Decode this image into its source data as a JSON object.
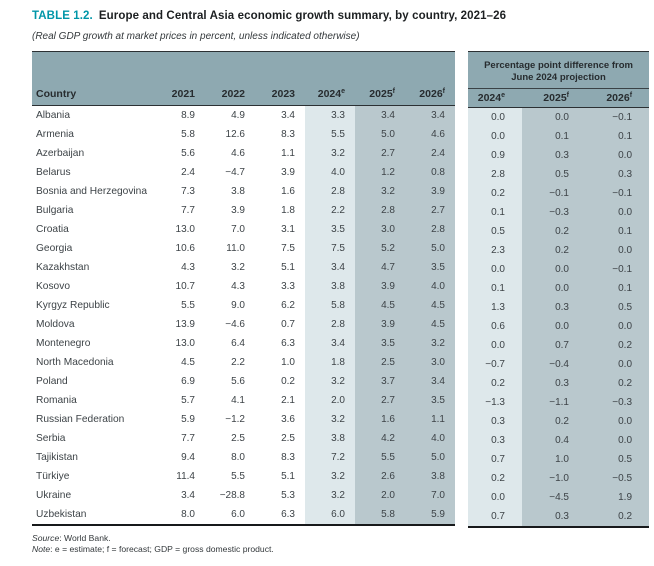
{
  "page": {
    "title_label": "TABLE 1.2.",
    "title_text": "Europe and Central Asia economic growth summary, by country, 2021–26",
    "subtitle": "(Real GDP growth at market prices in percent, unless indicated otherwise)",
    "source_label": "Source",
    "source_rest": ": World Bank.",
    "note_label": "Note",
    "note_rest": ": e = estimate; f = forecast; GDP = gross domestic product."
  },
  "colors": {
    "accent": "#0096a8",
    "header_band": "#8ea9b1",
    "col_light": "#dee8eb",
    "col_dark": "#b9c8cd",
    "ink": "#3d4347"
  },
  "growth_table": {
    "country_header": "Country",
    "year_headers": [
      {
        "base": "2021",
        "sup": ""
      },
      {
        "base": "2022",
        "sup": ""
      },
      {
        "base": "2023",
        "sup": ""
      },
      {
        "base": "2024",
        "sup": "e"
      },
      {
        "base": "2025",
        "sup": "f"
      },
      {
        "base": "2026",
        "sup": "f"
      }
    ]
  },
  "diff_table": {
    "span_title": "Percentage point difference from June 2024 projection",
    "year_headers": [
      {
        "base": "2024",
        "sup": "e"
      },
      {
        "base": "2025",
        "sup": "f"
      },
      {
        "base": "2026",
        "sup": "f"
      }
    ]
  },
  "rows": [
    {
      "country": "Albania",
      "growth": [
        "8.9",
        "4.9",
        "3.4",
        "3.3",
        "3.4",
        "3.4"
      ],
      "diff": [
        "0.0",
        "0.0",
        "−0.1"
      ]
    },
    {
      "country": "Armenia",
      "growth": [
        "5.8",
        "12.6",
        "8.3",
        "5.5",
        "5.0",
        "4.6"
      ],
      "diff": [
        "0.0",
        "0.1",
        "0.1"
      ]
    },
    {
      "country": "Azerbaijan",
      "growth": [
        "5.6",
        "4.6",
        "1.1",
        "3.2",
        "2.7",
        "2.4"
      ],
      "diff": [
        "0.9",
        "0.3",
        "0.0"
      ]
    },
    {
      "country": "Belarus",
      "growth": [
        "2.4",
        "−4.7",
        "3.9",
        "4.0",
        "1.2",
        "0.8"
      ],
      "diff": [
        "2.8",
        "0.5",
        "0.3"
      ]
    },
    {
      "country": "Bosnia and Herzegovina",
      "growth": [
        "7.3",
        "3.8",
        "1.6",
        "2.8",
        "3.2",
        "3.9"
      ],
      "diff": [
        "0.2",
        "−0.1",
        "−0.1"
      ]
    },
    {
      "country": "Bulgaria",
      "growth": [
        "7.7",
        "3.9",
        "1.8",
        "2.2",
        "2.8",
        "2.7"
      ],
      "diff": [
        "0.1",
        "−0.3",
        "0.0"
      ]
    },
    {
      "country": "Croatia",
      "growth": [
        "13.0",
        "7.0",
        "3.1",
        "3.5",
        "3.0",
        "2.8"
      ],
      "diff": [
        "0.5",
        "0.2",
        "0.1"
      ]
    },
    {
      "country": "Georgia",
      "growth": [
        "10.6",
        "11.0",
        "7.5",
        "7.5",
        "5.2",
        "5.0"
      ],
      "diff": [
        "2.3",
        "0.2",
        "0.0"
      ]
    },
    {
      "country": "Kazakhstan",
      "growth": [
        "4.3",
        "3.2",
        "5.1",
        "3.4",
        "4.7",
        "3.5"
      ],
      "diff": [
        "0.0",
        "0.0",
        "−0.1"
      ]
    },
    {
      "country": "Kosovo",
      "growth": [
        "10.7",
        "4.3",
        "3.3",
        "3.8",
        "3.9",
        "4.0"
      ],
      "diff": [
        "0.1",
        "0.0",
        "0.1"
      ]
    },
    {
      "country": "Kyrgyz Republic",
      "growth": [
        "5.5",
        "9.0",
        "6.2",
        "5.8",
        "4.5",
        "4.5"
      ],
      "diff": [
        "1.3",
        "0.3",
        "0.5"
      ]
    },
    {
      "country": "Moldova",
      "growth": [
        "13.9",
        "−4.6",
        "0.7",
        "2.8",
        "3.9",
        "4.5"
      ],
      "diff": [
        "0.6",
        "0.0",
        "0.0"
      ]
    },
    {
      "country": "Montenegro",
      "growth": [
        "13.0",
        "6.4",
        "6.3",
        "3.4",
        "3.5",
        "3.2"
      ],
      "diff": [
        "0.0",
        "0.7",
        "0.2"
      ]
    },
    {
      "country": "North Macedonia",
      "growth": [
        "4.5",
        "2.2",
        "1.0",
        "1.8",
        "2.5",
        "3.0"
      ],
      "diff": [
        "−0.7",
        "−0.4",
        "0.0"
      ]
    },
    {
      "country": "Poland",
      "growth": [
        "6.9",
        "5.6",
        "0.2",
        "3.2",
        "3.7",
        "3.4"
      ],
      "diff": [
        "0.2",
        "0.3",
        "0.2"
      ]
    },
    {
      "country": "Romania",
      "growth": [
        "5.7",
        "4.1",
        "2.1",
        "2.0",
        "2.7",
        "3.5"
      ],
      "diff": [
        "−1.3",
        "−1.1",
        "−0.3"
      ]
    },
    {
      "country": "Russian Federation",
      "growth": [
        "5.9",
        "−1.2",
        "3.6",
        "3.2",
        "1.6",
        "1.1"
      ],
      "diff": [
        "0.3",
        "0.2",
        "0.0"
      ]
    },
    {
      "country": "Serbia",
      "growth": [
        "7.7",
        "2.5",
        "2.5",
        "3.8",
        "4.2",
        "4.0"
      ],
      "diff": [
        "0.3",
        "0.4",
        "0.0"
      ]
    },
    {
      "country": "Tajikistan",
      "growth": [
        "9.4",
        "8.0",
        "8.3",
        "7.2",
        "5.5",
        "5.0"
      ],
      "diff": [
        "0.7",
        "1.0",
        "0.5"
      ]
    },
    {
      "country": "Türkiye",
      "growth": [
        "11.4",
        "5.5",
        "5.1",
        "3.2",
        "2.6",
        "3.8"
      ],
      "diff": [
        "0.2",
        "−1.0",
        "−0.5"
      ]
    },
    {
      "country": "Ukraine",
      "growth": [
        "3.4",
        "−28.8",
        "5.3",
        "3.2",
        "2.0",
        "7.0"
      ],
      "diff": [
        "0.0",
        "−4.5",
        "1.9"
      ]
    },
    {
      "country": "Uzbekistan",
      "growth": [
        "8.0",
        "6.0",
        "6.3",
        "6.0",
        "5.8",
        "5.9"
      ],
      "diff": [
        "0.7",
        "0.3",
        "0.2"
      ]
    }
  ]
}
